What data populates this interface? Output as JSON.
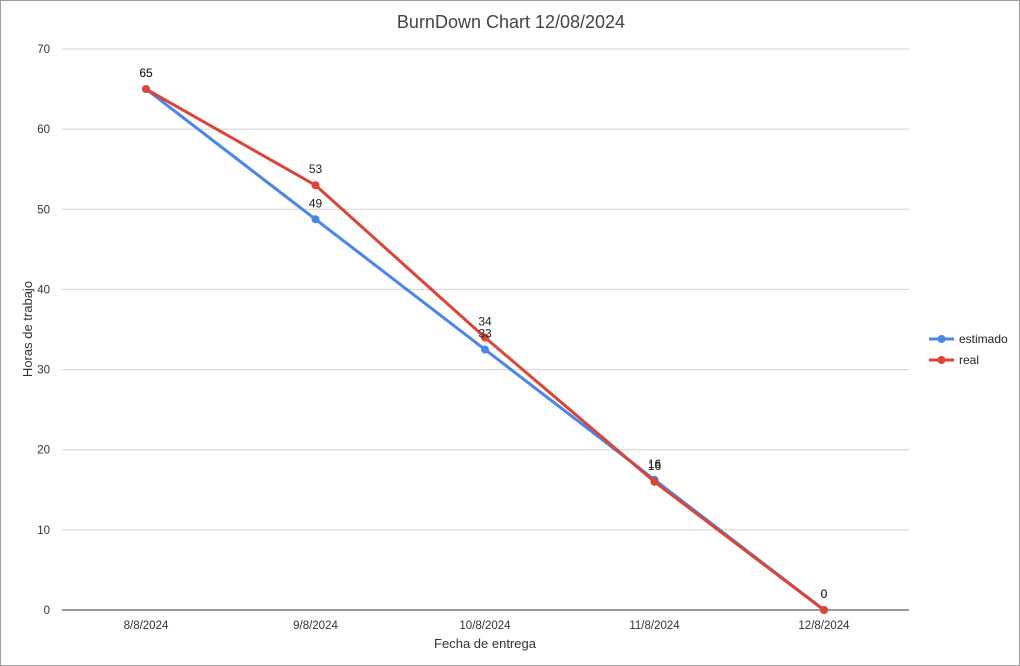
{
  "chart_data": {
    "type": "line",
    "title": "BurnDown Chart 12/08/2024",
    "xlabel": "Fecha de entrega",
    "ylabel": "Horas de trabajo",
    "categories": [
      "8/8/2024",
      "9/8/2024",
      "10/8/2024",
      "11/8/2024",
      "12/8/2024"
    ],
    "ylim": [
      0,
      70
    ],
    "yticks": [
      0,
      10,
      20,
      30,
      40,
      50,
      60,
      70
    ],
    "grid": true,
    "legend_position": "right",
    "series": [
      {
        "name": "estimado",
        "color": "#4a86e8",
        "values": [
          65,
          48.75,
          32.5,
          16.25,
          0
        ],
        "labels": [
          "65",
          "49",
          "33",
          "16",
          "0"
        ]
      },
      {
        "name": "real",
        "color": "#db4437",
        "values": [
          65,
          53,
          34,
          16,
          0
        ],
        "labels": [
          "65",
          "53",
          "34",
          "16",
          "0"
        ]
      }
    ]
  }
}
